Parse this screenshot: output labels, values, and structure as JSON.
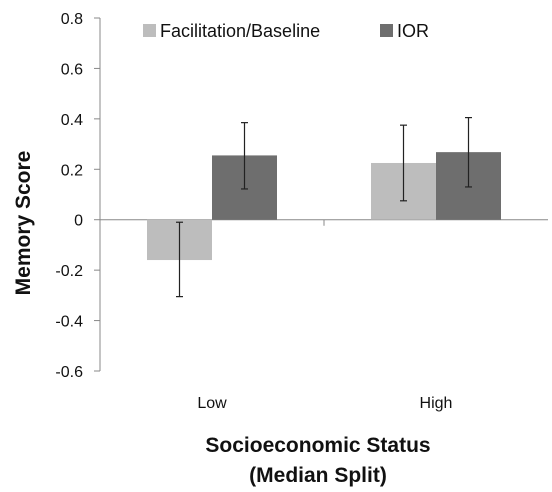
{
  "chart_data": {
    "type": "bar",
    "xlabel_lines": [
      "Socioeconomic Status",
      "(Median Split)"
    ],
    "ylabel": "Memory Score",
    "categories": [
      "Low",
      "High"
    ],
    "ylim": [
      -0.6,
      0.8
    ],
    "yticks": [
      "0.8",
      "0.6",
      "0.4",
      "0.2",
      "0",
      "-0.2",
      "-0.4",
      "-0.6"
    ],
    "ytick_values": [
      0.8,
      0.6,
      0.4,
      0.2,
      0,
      -0.2,
      -0.4,
      -0.6
    ],
    "legend_position": "top",
    "grid": false,
    "series": [
      {
        "name": "Facilitation/Baseline",
        "color": "#bdbdbd",
        "values": [
          -0.16,
          0.225
        ],
        "error_low": [
          -0.305,
          0.075
        ],
        "error_high": [
          -0.01,
          0.375
        ]
      },
      {
        "name": "IOR",
        "color": "#6e6e6e",
        "values": [
          0.255,
          0.268
        ],
        "error_low": [
          0.122,
          0.13
        ],
        "error_high": [
          0.385,
          0.405
        ]
      }
    ]
  }
}
